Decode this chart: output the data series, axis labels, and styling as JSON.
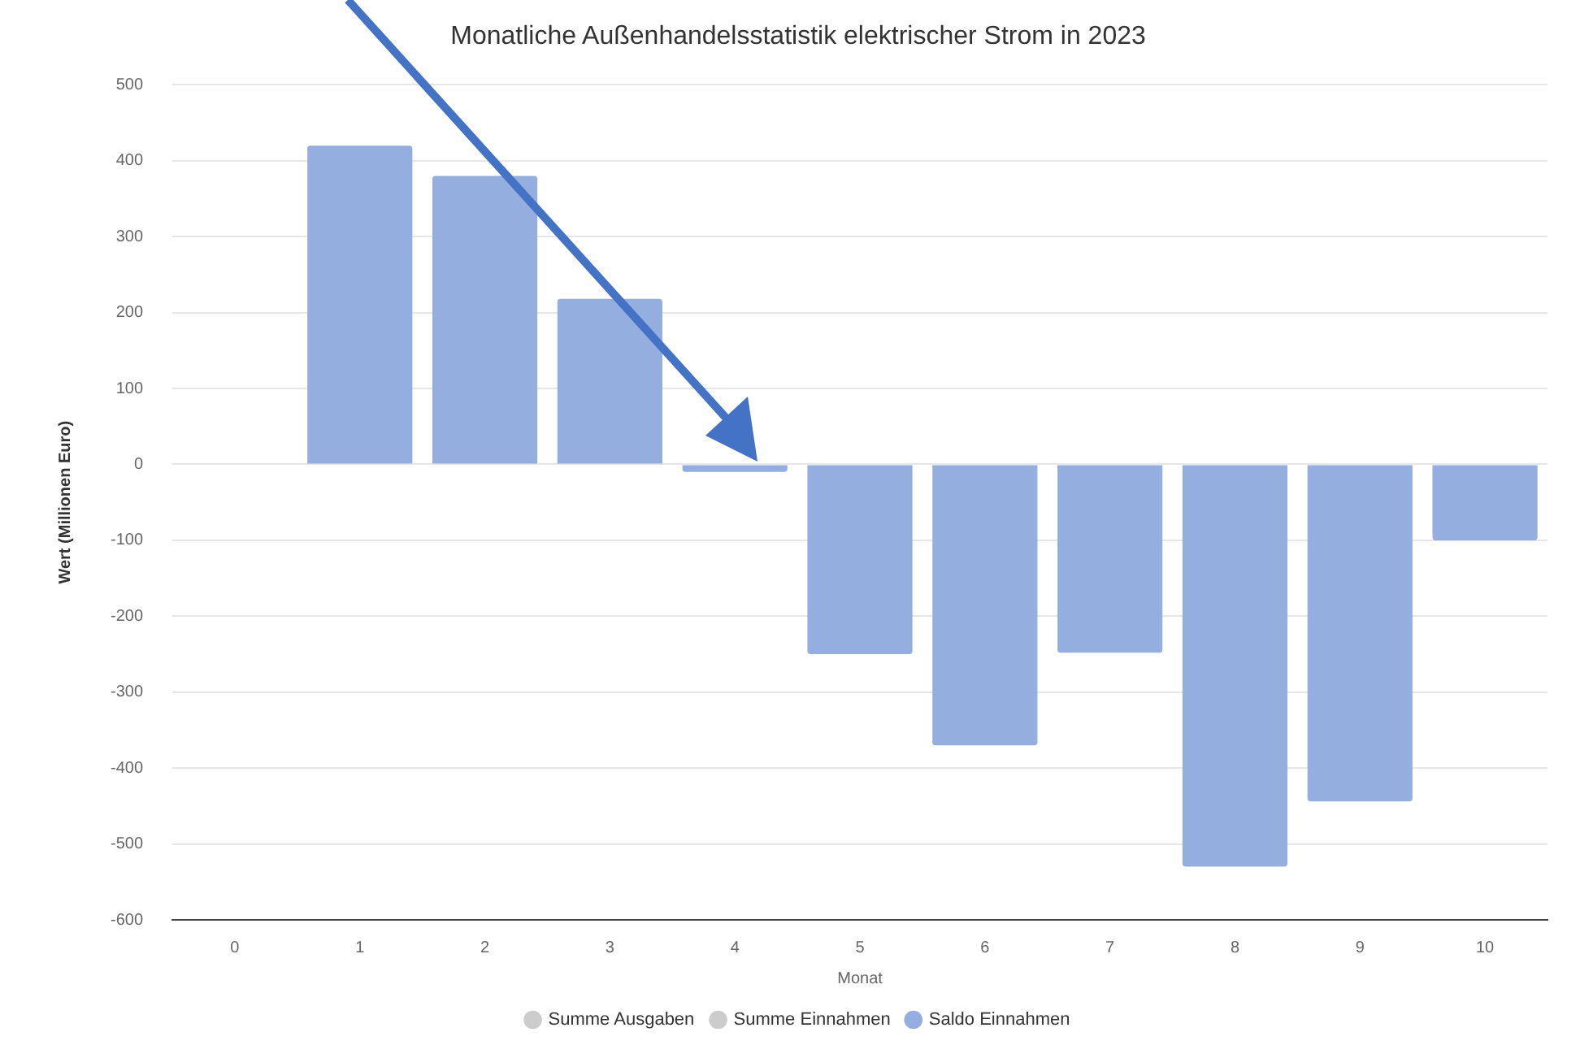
{
  "chart_data": {
    "type": "bar",
    "title": "Monatliche Außenhandelsstatistik elektrischer Strom in 2023",
    "xlabel": "Monat",
    "ylabel": "Wert (Millionen Euro)",
    "categories": [
      "0",
      "1",
      "2",
      "3",
      "4",
      "5",
      "6",
      "7",
      "8",
      "9",
      "10"
    ],
    "series": [
      {
        "name": "Summe Ausgaben",
        "color": "#cccccc",
        "values": [
          null,
          null,
          null,
          null,
          null,
          null,
          null,
          null,
          null,
          null,
          null
        ]
      },
      {
        "name": "Summe Einnahmen",
        "color": "#cccccc",
        "values": [
          null,
          null,
          null,
          null,
          null,
          null,
          null,
          null,
          null,
          null,
          null
        ]
      },
      {
        "name": "Saldo Einnahmen",
        "color": "#94aedf",
        "values": [
          null,
          420,
          380,
          218,
          -10,
          -250,
          -370,
          -248,
          -530,
          -444,
          -100
        ]
      }
    ],
    "ylim": [
      -600,
      500
    ],
    "yticks": [
      -600,
      -500,
      -400,
      -300,
      -200,
      -100,
      0,
      100,
      200,
      300,
      400,
      500
    ],
    "grid": "y",
    "legend": "bottom"
  }
}
